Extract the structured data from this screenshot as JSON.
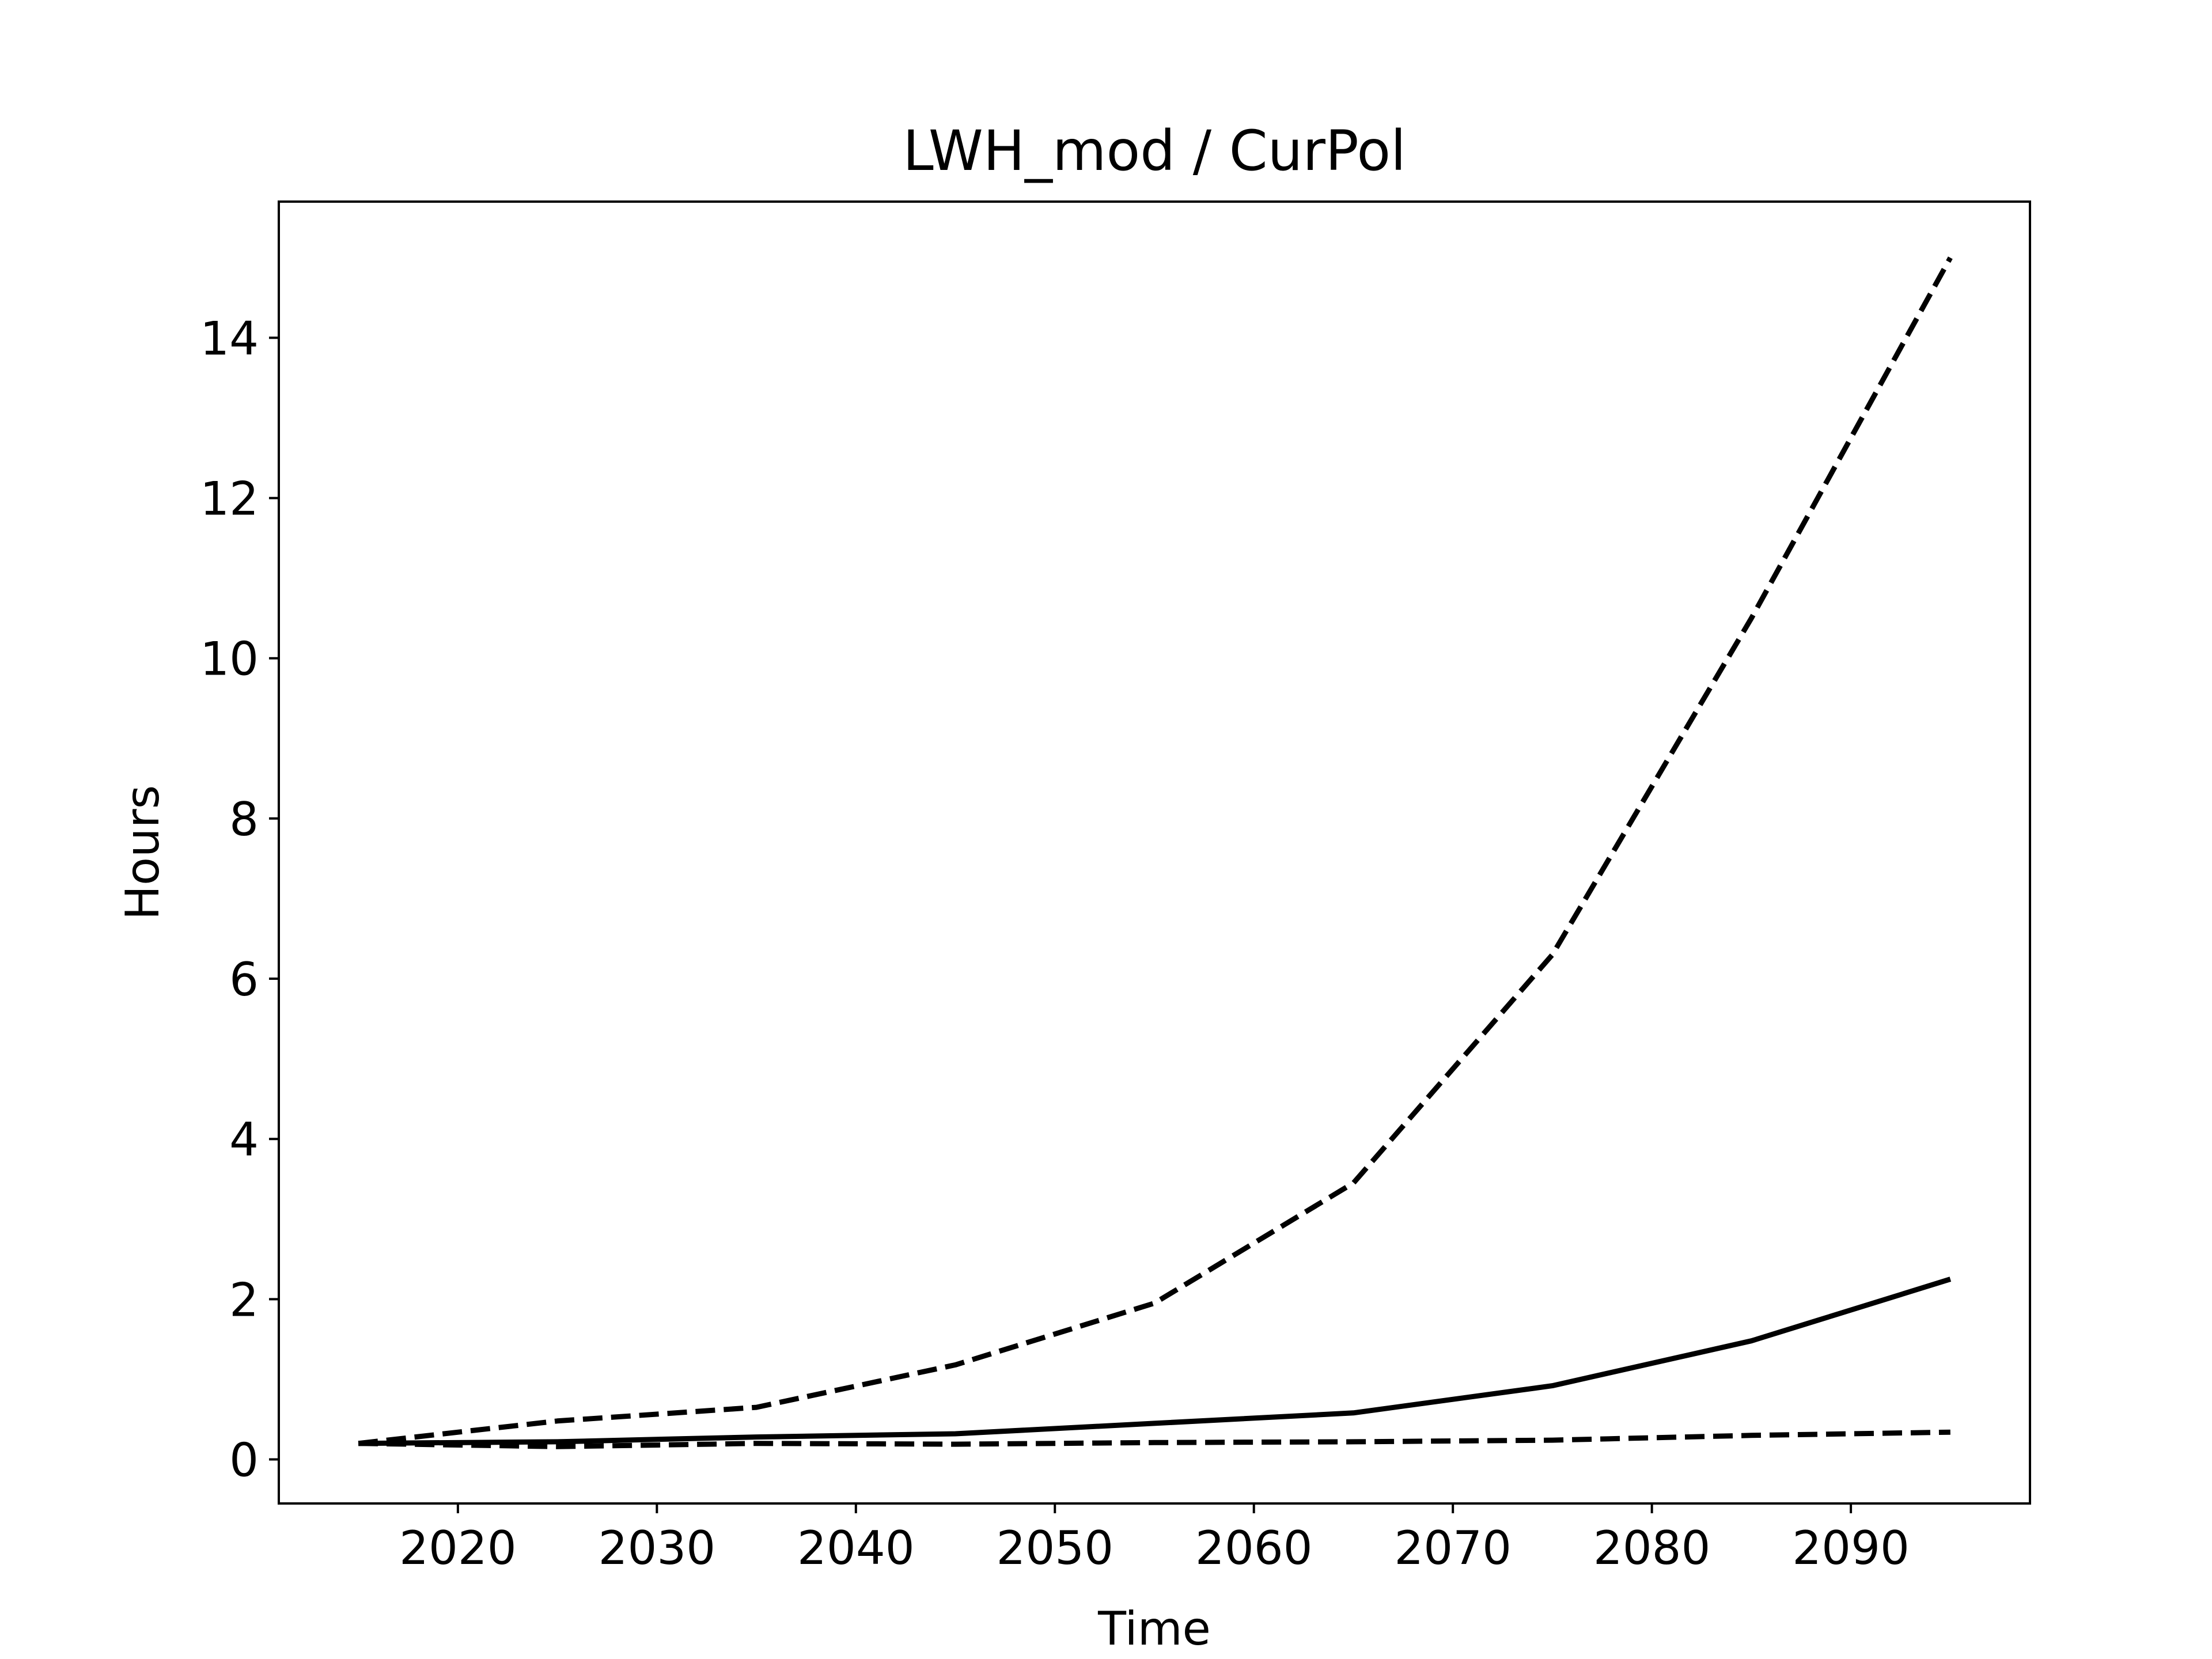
{
  "chart_data": {
    "type": "line",
    "title": "LWH_mod / CurPol",
    "xlabel": "Time",
    "ylabel": "Hours",
    "xlim": [
      2011,
      2099
    ],
    "ylim": [
      -0.55,
      15.7
    ],
    "x_ticks": [
      2020,
      2030,
      2040,
      2050,
      2060,
      2070,
      2080,
      2090
    ],
    "y_ticks": [
      0,
      2,
      4,
      6,
      8,
      10,
      12,
      14
    ],
    "x_tick_labels": [
      "2020",
      "2030",
      "2040",
      "2050",
      "2060",
      "2070",
      "2080",
      "2090"
    ],
    "y_tick_labels": [
      "0",
      "2",
      "4",
      "6",
      "8",
      "10",
      "12",
      "14"
    ],
    "grid": false,
    "legend": false,
    "x": [
      2015,
      2025,
      2035,
      2045,
      2055,
      2065,
      2075,
      2085,
      2095
    ],
    "series": [
      {
        "style": "dashed",
        "color": "#000000",
        "values": [
          0.2,
          0.48,
          0.65,
          1.18,
          1.95,
          3.45,
          6.3,
          10.5,
          15.0
        ]
      },
      {
        "style": "solid",
        "color": "#000000",
        "values": [
          0.2,
          0.22,
          0.28,
          0.32,
          0.45,
          0.58,
          0.92,
          1.48,
          2.25
        ]
      },
      {
        "style": "dashed",
        "color": "#000000",
        "values": [
          0.2,
          0.16,
          0.2,
          0.19,
          0.21,
          0.22,
          0.24,
          0.3,
          0.34
        ]
      }
    ]
  }
}
